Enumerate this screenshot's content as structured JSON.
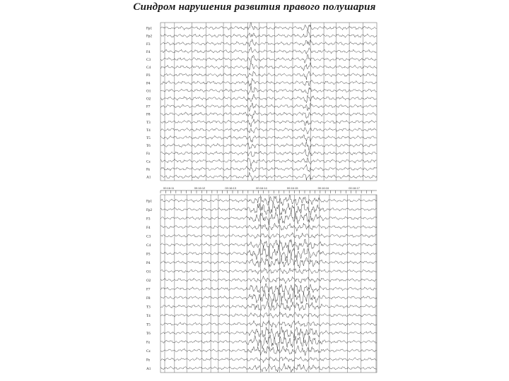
{
  "slide": {
    "title": "Синдром нарушения развития правого полушария"
  },
  "eeg_top": {
    "channels": [
      "Fp1",
      "Fp2",
      "F3",
      "F4",
      "C3",
      "C4",
      "P3",
      "P4",
      "O1",
      "O2",
      "F7",
      "F8",
      "T3",
      "T4",
      "T5",
      "T6",
      "Fz",
      "Cz",
      "Pz",
      "A1"
    ],
    "burst_events": [
      0.42,
      0.68
    ]
  },
  "eeg_bottom": {
    "channels": [
      "Fp1",
      "Fp2",
      "F3",
      "F4",
      "C3",
      "C4",
      "P3",
      "P4",
      "O1",
      "O2",
      "F7",
      "F8",
      "T3",
      "T4",
      "T5",
      "T6",
      "Fz",
      "Cz",
      "Pz",
      "A1"
    ],
    "time_marks": [
      "00:16:11",
      "00:16:12",
      "00:16:13",
      "00:16:14",
      "00:16:15",
      "00:16:16",
      "00:16:17"
    ],
    "seizure_onset": 0.38,
    "seizure_offset": 0.78
  },
  "colors": {
    "trace": "#2a2a2a",
    "gridline": "#555555",
    "background": "#ffffff"
  }
}
